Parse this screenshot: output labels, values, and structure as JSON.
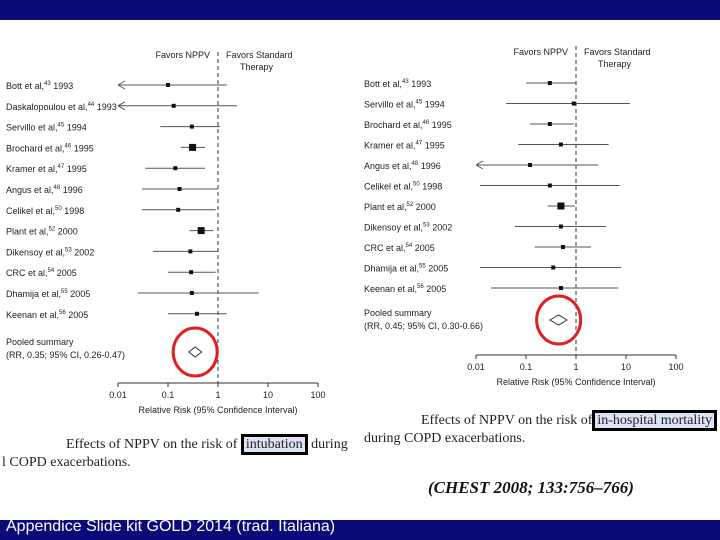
{
  "footer": "Appendice Slide kit GOLD 2014 (trad. Italiana)",
  "citation": "(CHEST 2008; 133:756–766)",
  "colors": {
    "banner": "#0a0a78",
    "highlight_circle": "#e02020",
    "diamond": "#333333"
  },
  "left_caption": {
    "prefix": "Effects of NPPV on the risk of",
    "highlight": "intubation",
    "suffix": "during",
    "line2": "l COPD exacerbations."
  },
  "right_caption": {
    "prefix": "Effects of NPPV on the risk of",
    "highlight": "in-hospital mortality",
    "line2": "during COPD exacerbations."
  },
  "chart_data": [
    {
      "type": "forest",
      "scale": "log",
      "xlim": [
        0.01,
        100
      ],
      "xticks": [
        "0.01",
        "0.1",
        "1",
        "10",
        "100"
      ],
      "xlabel": "Relative Risk (95% Confidence Interval)",
      "header_left": "Favors NPPV",
      "header_right_line1": "Favors Standard",
      "header_right_line2": "Therapy",
      "studies": [
        {
          "label": "Bott et al,",
          "ref": "43",
          "year": "1993",
          "rr": 0.1,
          "lo": 0.004,
          "hi": 1.5,
          "arrow_left": true
        },
        {
          "label": "Daskalopoulou et al,",
          "ref": "44",
          "year": "1993",
          "rr": 0.13,
          "lo": 0.004,
          "hi": 2.4,
          "arrow_left": true
        },
        {
          "label": "Servillo et al,",
          "ref": "45",
          "year": "1994",
          "rr": 0.3,
          "lo": 0.07,
          "hi": 1.1
        },
        {
          "label": "Brochard et al,",
          "ref": "46",
          "year": "1995",
          "rr": 0.31,
          "lo": 0.18,
          "hi": 0.55
        },
        {
          "label": "Kramer et al,",
          "ref": "47",
          "year": "1995",
          "rr": 0.14,
          "lo": 0.035,
          "hi": 0.55
        },
        {
          "label": "Angus et al,",
          "ref": "48",
          "year": "1996",
          "rr": 0.17,
          "lo": 0.03,
          "hi": 1.0
        },
        {
          "label": "Celikel et al,",
          "ref": "50",
          "year": "1998",
          "rr": 0.16,
          "lo": 0.03,
          "hi": 0.9
        },
        {
          "label": "Plant et al,",
          "ref": "52",
          "year": "2000",
          "rr": 0.46,
          "lo": 0.27,
          "hi": 0.8
        },
        {
          "label": "Dikensoy et al,",
          "ref": "53",
          "year": "2002",
          "rr": 0.28,
          "lo": 0.05,
          "hi": 1.0
        },
        {
          "label": "CRC et al,",
          "ref": "54",
          "year": "2005",
          "rr": 0.29,
          "lo": 0.1,
          "hi": 0.9
        },
        {
          "label": "Dhamija et al,",
          "ref": "55",
          "year": "2005",
          "rr": 0.3,
          "lo": 0.025,
          "hi": 6.5
        },
        {
          "label": "Keenan et al,",
          "ref": "56",
          "year": "2005",
          "rr": 0.38,
          "lo": 0.1,
          "hi": 1.5
        }
      ],
      "pooled": {
        "label": "Pooled summary",
        "detail": "(RR, 0.35; 95% CI, 0.26-0.47)",
        "rr": 0.35,
        "lo": 0.26,
        "hi": 0.47
      }
    },
    {
      "type": "forest",
      "scale": "log",
      "xlim": [
        0.01,
        100
      ],
      "xticks": [
        "0.01",
        "0.1",
        "1",
        "10",
        "100"
      ],
      "xlabel": "Relative Risk (95% Confidence Interval)",
      "header_left": "Favors NPPV",
      "header_right_line1": "Favors Standard",
      "header_right_line2": "Therapy",
      "studies": [
        {
          "label": "Bott et al,",
          "ref": "43",
          "year": "1993",
          "rr": 0.3,
          "lo": 0.1,
          "hi": 1.0
        },
        {
          "label": "Servillo et al,",
          "ref": "45",
          "year": "1994",
          "rr": 0.9,
          "lo": 0.04,
          "hi": 12
        },
        {
          "label": "Brochard et al,",
          "ref": "46",
          "year": "1995",
          "rr": 0.3,
          "lo": 0.12,
          "hi": 0.9
        },
        {
          "label": "Kramer et al,",
          "ref": "47",
          "year": "1995",
          "rr": 0.5,
          "lo": 0.07,
          "hi": 4.5
        },
        {
          "label": "Angus et al,",
          "ref": "48",
          "year": "1996",
          "rr": 0.12,
          "lo": 0.004,
          "hi": 2.8,
          "arrow_left": true
        },
        {
          "label": "Celikel et al,",
          "ref": "50",
          "year": "1998",
          "rr": 0.3,
          "lo": 0.012,
          "hi": 7.5
        },
        {
          "label": "Plant et al,",
          "ref": "52",
          "year": "2000",
          "rr": 0.5,
          "lo": 0.27,
          "hi": 0.95
        },
        {
          "label": "Dikensoy et al,",
          "ref": "53",
          "year": "2002",
          "rr": 0.5,
          "lo": 0.06,
          "hi": 4.0
        },
        {
          "label": "CRC et al,",
          "ref": "54",
          "year": "2005",
          "rr": 0.55,
          "lo": 0.15,
          "hi": 2.0
        },
        {
          "label": "Dhamija et al,",
          "ref": "55",
          "year": "2005",
          "rr": 0.35,
          "lo": 0.012,
          "hi": 8.0
        },
        {
          "label": "Keenan et al,",
          "ref": "56",
          "year": "2005",
          "rr": 0.5,
          "lo": 0.02,
          "hi": 7.0
        }
      ],
      "pooled": {
        "label": "Pooled summary",
        "detail": "(RR, 0.45; 95% CI, 0.30-0.66)",
        "rr": 0.45,
        "lo": 0.3,
        "hi": 0.66
      }
    }
  ]
}
